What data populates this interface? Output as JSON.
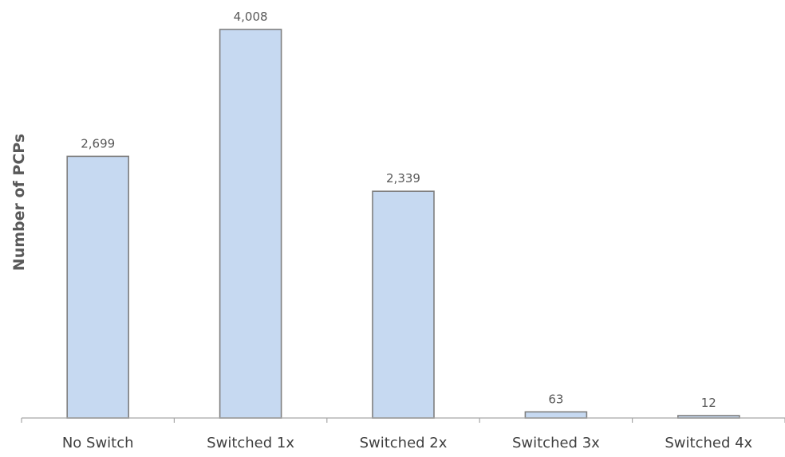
{
  "chart_data": {
    "type": "bar",
    "categories": [
      "No Switch",
      "Switched 1x",
      "Switched 2x",
      "Switched 3x",
      "Switched 4x"
    ],
    "values": [
      2699,
      4008,
      2339,
      63,
      12
    ],
    "data_labels": [
      "2,699",
      "4,008",
      "2,339",
      "63",
      "12"
    ],
    "ylabel": "Number of PCPs",
    "xlabel": "",
    "ylim": [
      0,
      4008
    ],
    "grid": false,
    "legend": "none",
    "colors": {
      "bar_fill": "#c6d9f1",
      "bar_stroke": "#7f7f7f",
      "axis": "#a6a6a6"
    }
  }
}
